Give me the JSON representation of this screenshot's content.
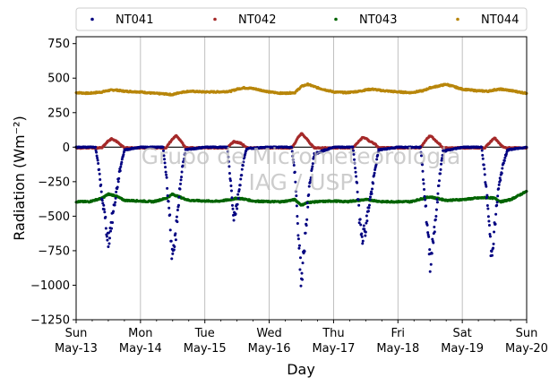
{
  "chart_data": {
    "type": "scatter",
    "xlabel": "Day",
    "ylabel": "Radiation (Wm⁻²)",
    "ylim": [
      -1250,
      800
    ],
    "yticks": [
      -1250,
      -1000,
      -750,
      -500,
      -250,
      0,
      250,
      500,
      750
    ],
    "xlim": [
      0,
      7
    ],
    "xticks": [
      {
        "x": 0,
        "line1": "Sun",
        "line2": "May-13"
      },
      {
        "x": 1,
        "line1": "Mon",
        "line2": "May-14"
      },
      {
        "x": 2,
        "line1": "Tue",
        "line2": "May-15"
      },
      {
        "x": 3,
        "line1": "Wed",
        "line2": "May-16"
      },
      {
        "x": 4,
        "line1": "Thu",
        "line2": "May-17"
      },
      {
        "x": 5,
        "line1": "Fri",
        "line2": "May-18"
      },
      {
        "x": 6,
        "line1": "Sat",
        "line2": "May-19"
      },
      {
        "x": 7,
        "line1": "Sun",
        "line2": "May-20"
      }
    ],
    "grid": "vertical",
    "legend_placement": "top",
    "watermark": [
      "Grupo de Micrometeorologia",
      "IAG / USP"
    ],
    "series": [
      {
        "name": "NT041",
        "color": "#000080",
        "x": [
          0.0,
          0.3,
          0.35,
          0.4,
          0.45,
          0.5,
          0.55,
          0.6,
          0.65,
          0.7,
          0.75,
          1.0,
          1.35,
          1.4,
          1.45,
          1.5,
          1.55,
          1.6,
          1.65,
          1.7,
          2.0,
          2.35,
          2.4,
          2.45,
          2.5,
          2.55,
          2.6,
          2.65,
          3.0,
          3.35,
          3.4,
          3.45,
          3.5,
          3.55,
          3.6,
          3.65,
          3.7,
          4.0,
          4.3,
          4.35,
          4.4,
          4.45,
          4.5,
          4.55,
          4.6,
          4.65,
          4.7,
          5.0,
          5.35,
          5.4,
          5.45,
          5.5,
          5.55,
          5.6,
          5.65,
          5.7,
          6.0,
          6.3,
          6.35,
          6.4,
          6.45,
          6.5,
          6.55,
          6.6,
          6.65,
          6.7,
          7.0
        ],
        "y": [
          0,
          0,
          -150,
          -350,
          -520,
          -680,
          -550,
          -400,
          -250,
          -120,
          -20,
          0,
          0,
          -200,
          -480,
          -850,
          -620,
          -350,
          -150,
          -20,
          0,
          0,
          -250,
          -500,
          -420,
          -250,
          -100,
          -10,
          0,
          0,
          -200,
          -600,
          -980,
          -700,
          -400,
          -200,
          -50,
          0,
          0,
          -200,
          -500,
          -640,
          -580,
          -420,
          -300,
          -150,
          -20,
          0,
          0,
          -250,
          -550,
          -830,
          -650,
          -450,
          -200,
          -30,
          0,
          0,
          -200,
          -450,
          -780,
          -600,
          -350,
          -200,
          -100,
          -20,
          0
        ]
      },
      {
        "name": "NT042",
        "color": "#a52a2a",
        "x": [
          0.0,
          0.4,
          0.45,
          0.5,
          0.55,
          0.6,
          0.65,
          0.7,
          0.75,
          1.0,
          1.4,
          1.45,
          1.5,
          1.55,
          1.6,
          1.65,
          1.7,
          2.0,
          2.35,
          2.4,
          2.45,
          2.5,
          2.55,
          2.6,
          2.65,
          3.0,
          3.35,
          3.4,
          3.45,
          3.5,
          3.55,
          3.6,
          3.65,
          3.7,
          4.0,
          4.3,
          4.35,
          4.4,
          4.45,
          4.5,
          4.55,
          4.6,
          4.65,
          4.7,
          5.0,
          5.35,
          5.4,
          5.45,
          5.5,
          5.55,
          5.6,
          5.65,
          5.7,
          6.0,
          6.35,
          6.4,
          6.45,
          6.5,
          6.55,
          6.6,
          6.65,
          7.0
        ],
        "y": [
          -5,
          -5,
          20,
          45,
          60,
          50,
          35,
          15,
          -5,
          -5,
          -5,
          30,
          60,
          85,
          60,
          30,
          -5,
          -5,
          -5,
          20,
          40,
          35,
          30,
          15,
          -5,
          -5,
          -5,
          30,
          70,
          100,
          75,
          50,
          20,
          -5,
          -5,
          -5,
          20,
          45,
          70,
          65,
          45,
          35,
          20,
          -5,
          -5,
          -5,
          30,
          60,
          85,
          65,
          40,
          20,
          -5,
          -5,
          -5,
          20,
          45,
          70,
          40,
          15,
          -5,
          -5
        ]
      },
      {
        "name": "NT043",
        "color": "#006400",
        "x": [
          0.0,
          0.2,
          0.4,
          0.5,
          0.6,
          0.75,
          1.0,
          1.2,
          1.4,
          1.5,
          1.6,
          1.75,
          2.0,
          2.2,
          2.4,
          2.5,
          2.6,
          2.75,
          3.0,
          3.2,
          3.4,
          3.5,
          3.6,
          3.75,
          4.0,
          4.2,
          4.4,
          4.5,
          4.6,
          4.75,
          5.0,
          5.2,
          5.4,
          5.5,
          5.6,
          5.75,
          6.0,
          6.2,
          6.4,
          6.5,
          6.6,
          6.75,
          7.0
        ],
        "y": [
          -395,
          -395,
          -370,
          -340,
          -350,
          -385,
          -390,
          -395,
          -370,
          -340,
          -360,
          -385,
          -390,
          -392,
          -380,
          -370,
          -375,
          -390,
          -395,
          -395,
          -380,
          -420,
          -400,
          -395,
          -390,
          -395,
          -385,
          -380,
          -385,
          -395,
          -395,
          -395,
          -370,
          -360,
          -370,
          -385,
          -380,
          -370,
          -365,
          -370,
          -395,
          -380,
          -320
        ]
      },
      {
        "name": "NT044",
        "color": "#b8860b",
        "x": [
          0.0,
          0.2,
          0.4,
          0.5,
          0.6,
          0.75,
          1.0,
          1.2,
          1.4,
          1.5,
          1.6,
          1.75,
          2.0,
          2.2,
          2.4,
          2.5,
          2.6,
          2.75,
          3.0,
          3.2,
          3.4,
          3.5,
          3.6,
          3.75,
          4.0,
          4.2,
          4.4,
          4.5,
          4.6,
          4.75,
          5.0,
          5.2,
          5.4,
          5.5,
          5.6,
          5.75,
          6.0,
          6.2,
          6.4,
          6.5,
          6.6,
          6.75,
          7.0
        ],
        "y": [
          395,
          390,
          400,
          410,
          415,
          405,
          400,
          390,
          385,
          380,
          395,
          405,
          400,
          400,
          405,
          420,
          430,
          425,
          400,
          390,
          395,
          440,
          455,
          430,
          400,
          395,
          405,
          415,
          420,
          410,
          400,
          395,
          410,
          430,
          440,
          455,
          420,
          410,
          405,
          415,
          420,
          410,
          390
        ]
      }
    ]
  }
}
